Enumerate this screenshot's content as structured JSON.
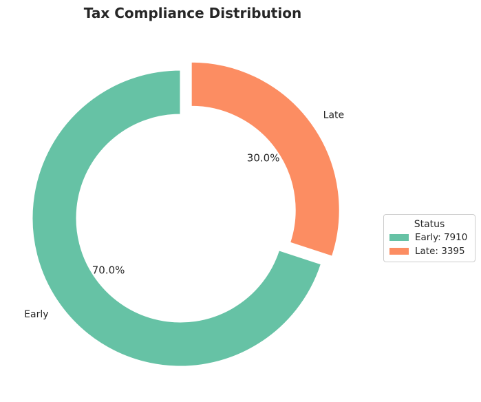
{
  "chart_data": {
    "type": "pie",
    "style": "donut",
    "title": "Tax Compliance Distribution",
    "categories": [
      "Early",
      "Late"
    ],
    "values": [
      7910,
      3395
    ],
    "percent_labels": [
      "70.0%",
      "30.0%"
    ],
    "colors": [
      "#66c2a5",
      "#fc8d62"
    ],
    "exploded": [
      "Late"
    ],
    "legend": {
      "title": "Status",
      "placement": "center-right",
      "entries": [
        "Early: 7910",
        "Late: 3395"
      ]
    }
  }
}
